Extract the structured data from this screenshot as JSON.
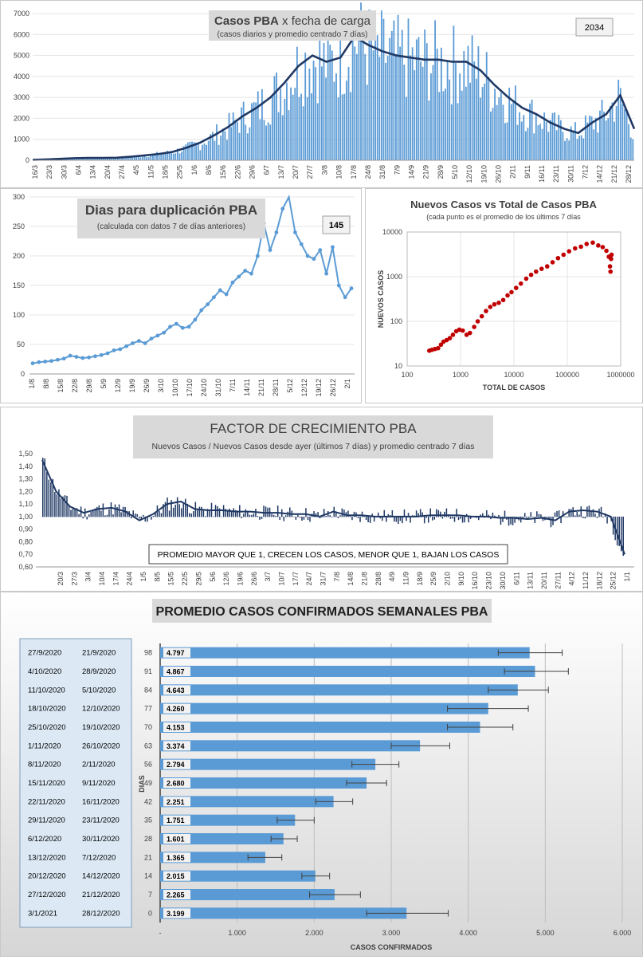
{
  "chart_data": [
    {
      "id": "casos",
      "type": "bar+line",
      "title": "Casos PBA",
      "title_rest": " x fecha de carga",
      "subtitle": "(casos diarios y promedio centrado 7 días)",
      "callout": "2034",
      "ylim": [
        0,
        7000
      ],
      "yticks": [
        0,
        1000,
        2000,
        3000,
        4000,
        5000,
        6000,
        7000
      ],
      "xticks": [
        "16/3",
        "23/3",
        "30/3",
        "6/4",
        "13/4",
        "20/4",
        "27/4",
        "4/5",
        "11/5",
        "18/5",
        "25/5",
        "1/6",
        "8/6",
        "15/6",
        "22/6",
        "29/6",
        "6/7",
        "13/7",
        "20/7",
        "27/7",
        "3/8",
        "10/8",
        "17/8",
        "24/8",
        "31/8",
        "7/9",
        "14/9",
        "21/9",
        "28/9",
        "5/10",
        "12/10",
        "19/10",
        "26/10",
        "2/11",
        "9/11",
        "16/11",
        "23/11",
        "30/11",
        "7/12",
        "14/12",
        "21/12",
        "28/12"
      ],
      "series": [
        {
          "name": "promedio 7 días",
          "values": [
            20,
            40,
            70,
            100,
            110,
            110,
            120,
            170,
            230,
            300,
            400,
            600,
            850,
            1200,
            1600,
            2100,
            2500,
            3000,
            3700,
            4500,
            5000,
            4700,
            4900,
            5900,
            5500,
            5200,
            5000,
            4900,
            4800,
            4800,
            4700,
            4700,
            4300,
            3600,
            3000,
            2500,
            2200,
            1800,
            1500,
            1300,
            1800,
            2200,
            3100,
            1500
          ]
        }
      ],
      "colors": {
        "bars": "#5b9bd5",
        "line": "#1f3864"
      }
    },
    {
      "id": "duplicacion",
      "type": "line",
      "title": "Dias para duplicación PBA",
      "subtitle": "(calculada con datos 7 de días anteriores)",
      "callout": "145",
      "ylim": [
        0,
        300
      ],
      "yticks": [
        0,
        50,
        100,
        150,
        200,
        250,
        300
      ],
      "xticks": [
        "1/8",
        "8/8",
        "15/8",
        "22/8",
        "29/8",
        "5/9",
        "12/9",
        "19/9",
        "26/9",
        "3/10",
        "10/10",
        "17/10",
        "24/10",
        "31/10",
        "7/11",
        "14/11",
        "21/11",
        "28/11",
        "5/12",
        "12/12",
        "19/12",
        "26/12",
        "2/1"
      ],
      "values": [
        18,
        20,
        21,
        22,
        24,
        26,
        31,
        29,
        27,
        28,
        30,
        32,
        35,
        40,
        42,
        47,
        52,
        56,
        52,
        60,
        65,
        70,
        80,
        85,
        78,
        80,
        92,
        108,
        118,
        130,
        142,
        135,
        155,
        165,
        175,
        170,
        200,
        255,
        210,
        240,
        280,
        310,
        240,
        220,
        200,
        195,
        210,
        170,
        215,
        150,
        130,
        145
      ],
      "colors": {
        "line": "#5b9bd5"
      }
    },
    {
      "id": "nuevos-vs-total",
      "type": "scatter",
      "title": "Nuevos Casos vs Total de Casos PBA",
      "subtitle": "(cada punto es el promedio de los últimos 7 días",
      "xlabel": "TOTAL DE CASOS",
      "ylabel": "NUEVOS CASOS",
      "xscale": "log",
      "yscale": "log",
      "xlim": [
        100,
        1000000
      ],
      "ylim": [
        10,
        10000
      ],
      "xticks": [
        "100",
        "1000",
        "10000",
        "100000",
        "1000000"
      ],
      "yticks": [
        "10",
        "100",
        "1000",
        "10000"
      ],
      "points": [
        [
          260,
          22
        ],
        [
          290,
          23
        ],
        [
          330,
          24
        ],
        [
          380,
          25
        ],
        [
          430,
          30
        ],
        [
          480,
          35
        ],
        [
          550,
          38
        ],
        [
          630,
          42
        ],
        [
          720,
          50
        ],
        [
          830,
          60
        ],
        [
          950,
          65
        ],
        [
          1100,
          62
        ],
        [
          1300,
          50
        ],
        [
          1500,
          55
        ],
        [
          1800,
          75
        ],
        [
          2100,
          100
        ],
        [
          2500,
          130
        ],
        [
          3000,
          170
        ],
        [
          3600,
          210
        ],
        [
          4300,
          240
        ],
        [
          5200,
          260
        ],
        [
          6300,
          300
        ],
        [
          7600,
          380
        ],
        [
          9000,
          450
        ],
        [
          11000,
          560
        ],
        [
          13500,
          700
        ],
        [
          17000,
          900
        ],
        [
          21000,
          1100
        ],
        [
          26000,
          1300
        ],
        [
          33000,
          1500
        ],
        [
          42000,
          1700
        ],
        [
          53000,
          2100
        ],
        [
          67000,
          2600
        ],
        [
          85000,
          3100
        ],
        [
          108000,
          3700
        ],
        [
          140000,
          4300
        ],
        [
          180000,
          4700
        ],
        [
          230000,
          5400
        ],
        [
          300000,
          5800
        ],
        [
          380000,
          5000
        ],
        [
          460000,
          4600
        ],
        [
          540000,
          3800
        ],
        [
          600000,
          2800
        ],
        [
          630000,
          1700
        ],
        [
          645000,
          1300
        ],
        [
          660000,
          2500
        ],
        [
          675000,
          3100
        ]
      ],
      "colors": {
        "points": "#c00000"
      }
    },
    {
      "id": "factor-crecimiento",
      "type": "bar+line",
      "title": "FACTOR DE CRECIMIENTO PBA",
      "subtitle": "Nuevos Casos  / Nuevos Casos desde ayer (últimos 7 días) y promedio  centrado 7 días",
      "annotation": "PROMEDIO MAYOR QUE 1, CRECEN LOS CASOS, MENOR QUE 1, BAJAN LOS CASOS",
      "ylim": [
        0.6,
        1.5
      ],
      "yticks": [
        "0,60",
        "0,70",
        "0,80",
        "0,90",
        "1,00",
        "1,10",
        "1,20",
        "1,30",
        "1,40",
        "1,50"
      ],
      "xticks": [
        "20/3",
        "27/3",
        "3/4",
        "10/4",
        "17/4",
        "24/4",
        "1/5",
        "8/5",
        "15/5",
        "22/5",
        "29/5",
        "5/6",
        "12/6",
        "19/6",
        "26/6",
        "3/7",
        "10/7",
        "17/7",
        "24/7",
        "31/7",
        "7/8",
        "14/8",
        "21/8",
        "28/8",
        "4/9",
        "11/9",
        "18/9",
        "25/9",
        "2/10",
        "9/10",
        "16/10",
        "23/10",
        "30/10",
        "6/11",
        "13/11",
        "20/11",
        "27/11",
        "4/12",
        "11/12",
        "18/12",
        "25/12",
        "1/1"
      ],
      "series": [
        {
          "name": "promedio 7 días",
          "values": [
            1.45,
            1.2,
            1.08,
            1.03,
            1.06,
            1.07,
            1.04,
            0.97,
            1.02,
            1.1,
            1.12,
            1.06,
            1.05,
            1.05,
            1.04,
            1.04,
            1.03,
            1.03,
            1.02,
            1.02,
            1.0,
            1.04,
            1.01,
            1.01,
            1.0,
            1.0,
            1.0,
            1.0,
            1.01,
            1.01,
            1.01,
            1.0,
            1.0,
            0.99,
            0.99,
            0.98,
            0.99,
            0.97,
            1.04,
            1.05,
            1.04,
            1.0,
            0.7
          ]
        }
      ],
      "colors": {
        "bars": "#1f3864",
        "line": "#1f3864"
      }
    },
    {
      "id": "promedio-semanal",
      "type": "bar",
      "orientation": "horizontal",
      "title": "PROMEDIO CASOS CONFIRMADOS SEMANALES PBA",
      "xlabel": "CASOS CONFIRMADOS",
      "ylabel": "DIAS",
      "xlim": [
        0,
        6000
      ],
      "xticks": [
        "-",
        "1.000",
        "2.000",
        "3.000",
        "4.000",
        "5.000",
        "6.000"
      ],
      "categories": [
        "98",
        "91",
        "84",
        "77",
        "70",
        "63",
        "56",
        "49",
        "42",
        "35",
        "28",
        "21",
        "14",
        "7",
        "0"
      ],
      "values": [
        4797,
        4867,
        4643,
        4260,
        4153,
        3374,
        2794,
        2680,
        2251,
        1751,
        1601,
        1365,
        2015,
        2265,
        3199
      ],
      "labels": [
        "4.797",
        "4.867",
        "4.643",
        "4.260",
        "4.153",
        "3.374",
        "2.794",
        "2.680",
        "2.251",
        "1.751",
        "1.601",
        "1.365",
        "2.015",
        "2.265",
        "3.199"
      ],
      "error_low": [
        4390,
        4470,
        4260,
        3730,
        3730,
        3000,
        2490,
        2420,
        2020,
        1520,
        1440,
        1140,
        1840,
        1940,
        2680
      ],
      "error_high": [
        5220,
        5300,
        5040,
        4780,
        4580,
        3760,
        3100,
        2940,
        2500,
        2000,
        1780,
        1580,
        2200,
        2600,
        3740
      ],
      "date_ranges": [
        [
          "27/9/2020",
          "21/9/2020"
        ],
        [
          "4/10/2020",
          "28/9/2020"
        ],
        [
          "11/10/2020",
          "5/10/2020"
        ],
        [
          "18/10/2020",
          "12/10/2020"
        ],
        [
          "25/10/2020",
          "19/10/2020"
        ],
        [
          "1/11/2020",
          "26/10/2020"
        ],
        [
          "8/11/2020",
          "2/11/2020"
        ],
        [
          "15/11/2020",
          "9/11/2020"
        ],
        [
          "22/11/2020",
          "16/11/2020"
        ],
        [
          "29/11/2020",
          "23/11/2020"
        ],
        [
          "6/12/2020",
          "30/11/2020"
        ],
        [
          "13/12/2020",
          "7/12/2020"
        ],
        [
          "20/12/2020",
          "14/12/2020"
        ],
        [
          "27/12/2020",
          "21/12/2020"
        ],
        [
          "3/1/2021",
          "28/12/2020"
        ]
      ],
      "colors": {
        "bars": "#5b9bd5"
      }
    }
  ]
}
